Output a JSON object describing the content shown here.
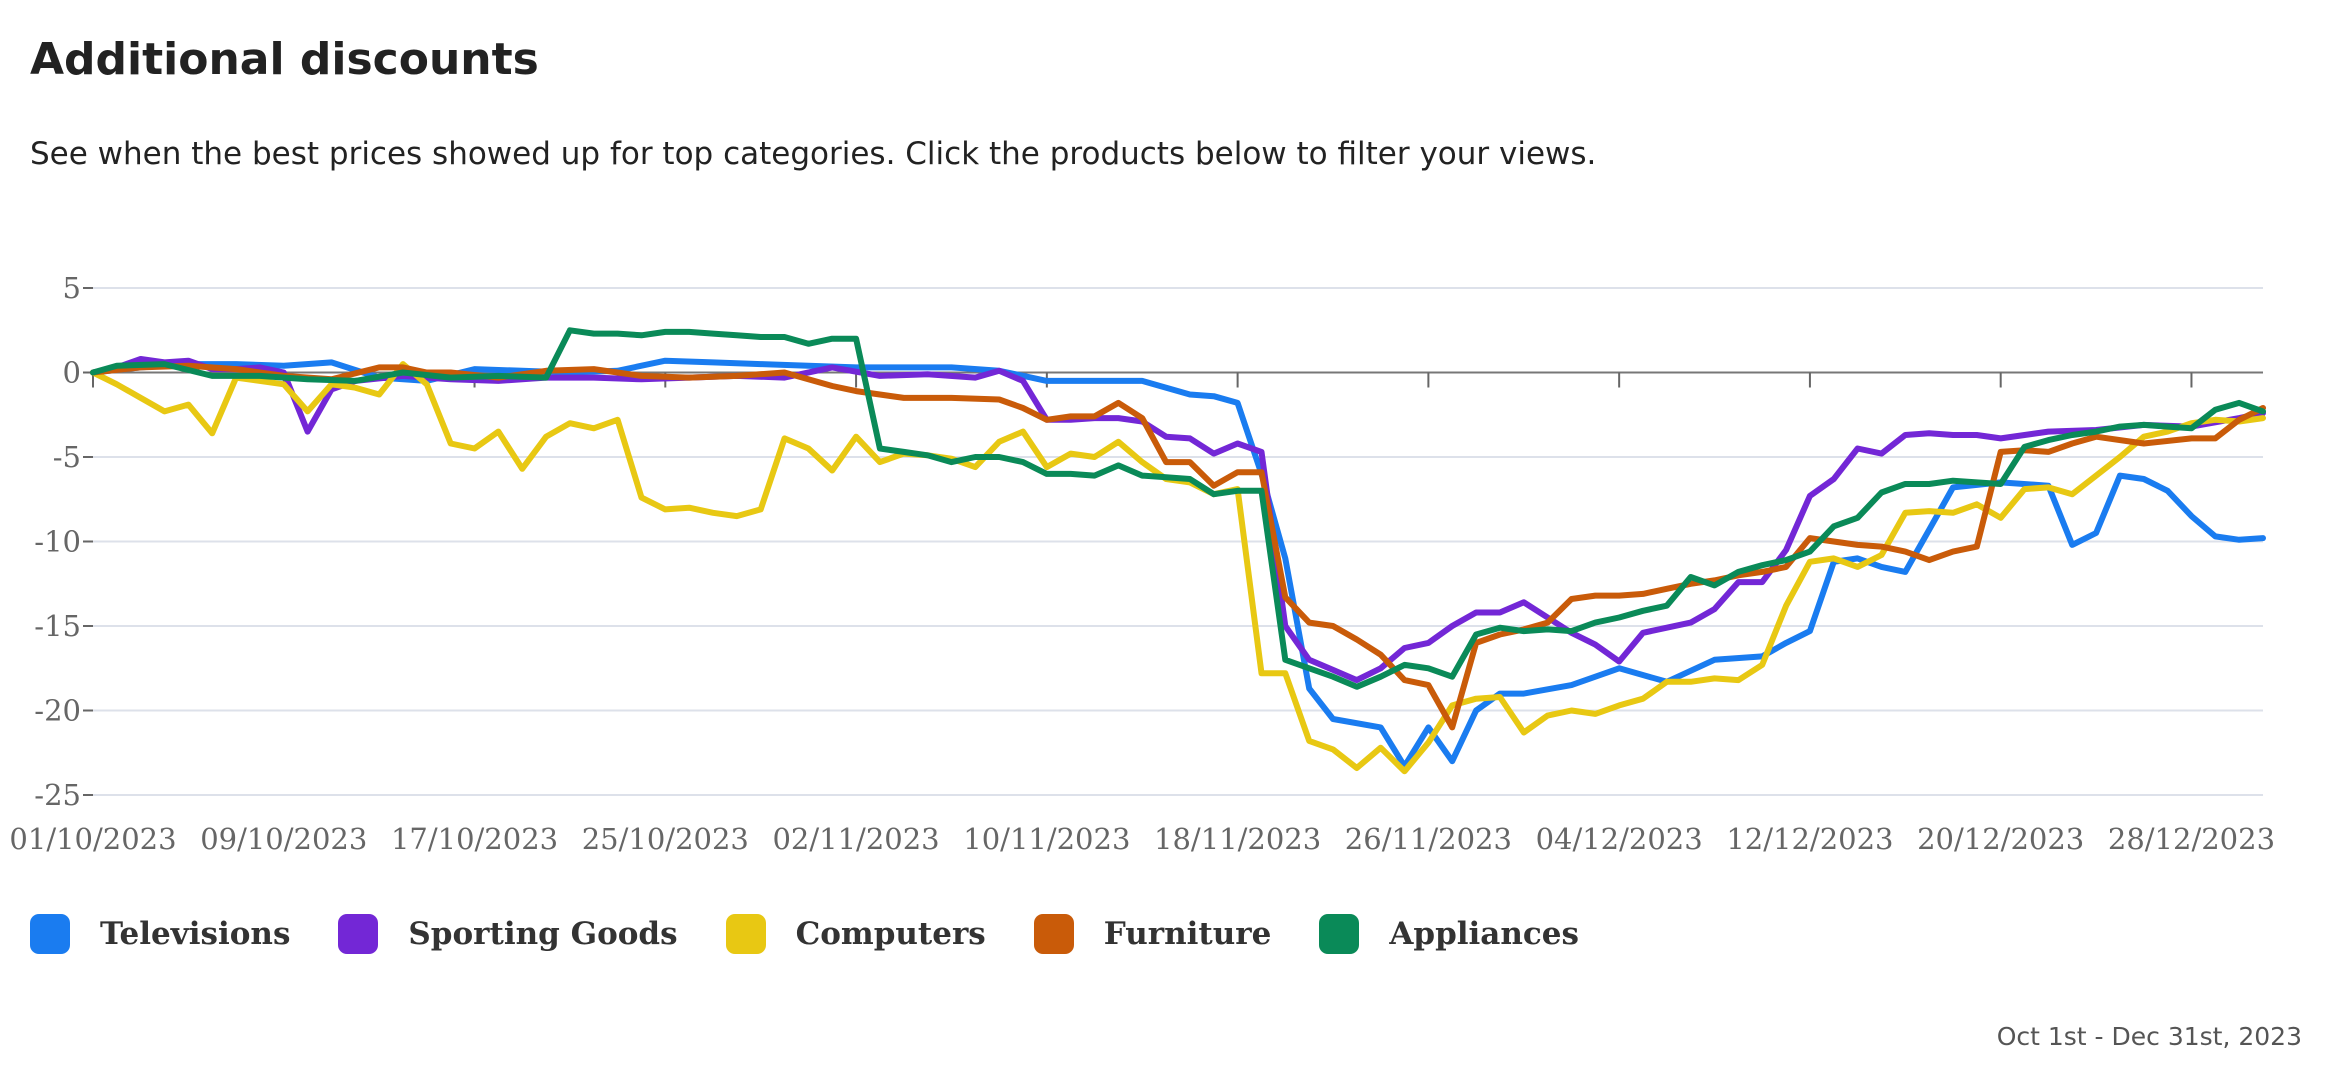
{
  "header": {
    "title": "Additional discounts",
    "subtitle": "See when the best prices showed up for top categories. Click the products below to filter your views."
  },
  "footer": {
    "date_range": "Oct 1st - Dec 31st, 2023"
  },
  "chart_data": {
    "type": "line",
    "title": "",
    "xlabel": "",
    "ylabel": "",
    "x_range": [
      "01/10/2023",
      "31/12/2023"
    ],
    "ylim": [
      -25,
      5
    ],
    "yticks": [
      5,
      0,
      -5,
      -10,
      -15,
      -20,
      -25
    ],
    "ytick_labels": [
      "5",
      "0",
      "-5",
      "-10",
      "-15",
      "-20",
      "-25"
    ],
    "xticks": [
      "01/10/2023",
      "09/10/2023",
      "17/10/2023",
      "25/10/2023",
      "02/11/2023",
      "10/11/2023",
      "18/11/2023",
      "26/11/2023",
      "04/12/2023",
      "12/12/2023",
      "20/12/2023",
      "28/12/2023"
    ],
    "grid": true,
    "legend_position": "bottom-left",
    "series": [
      {
        "name": "Televisions",
        "color": "#1a7cf0",
        "x": [
          "01/10/2023",
          "03/10/2023",
          "05/10/2023",
          "07/10/2023",
          "09/10/2023",
          "11/10/2023",
          "13/10/2023",
          "15/10/2023",
          "17/10/2023",
          "19/10/2023",
          "21/10/2023",
          "23/10/2023",
          "25/10/2023",
          "27/10/2023",
          "29/10/2023",
          "31/10/2023",
          "02/11/2023",
          "04/11/2023",
          "06/11/2023",
          "08/11/2023",
          "10/11/2023",
          "12/11/2023",
          "14/11/2023",
          "16/11/2023",
          "17/11/2023",
          "18/11/2023",
          "19/11/2023",
          "20/11/2023",
          "21/11/2023",
          "22/11/2023",
          "24/11/2023",
          "25/11/2023",
          "26/11/2023",
          "27/11/2023",
          "28/11/2023",
          "29/11/2023",
          "30/11/2023",
          "02/12/2023",
          "04/12/2023",
          "06/12/2023",
          "08/12/2023",
          "10/12/2023",
          "11/12/2023",
          "12/12/2023",
          "13/12/2023",
          "14/12/2023",
          "15/12/2023",
          "16/12/2023",
          "17/12/2023",
          "18/12/2023",
          "20/12/2023",
          "22/12/2023",
          "23/12/2023",
          "24/12/2023",
          "25/12/2023",
          "26/12/2023",
          "27/12/2023",
          "28/12/2023",
          "29/12/2023",
          "30/12/2023",
          "31/12/2023"
        ],
        "y": [
          0,
          0.3,
          0.5,
          0.5,
          0.4,
          0.6,
          -0.3,
          -0.5,
          0.2,
          0.1,
          0,
          0.1,
          0.7,
          0.6,
          0.5,
          0.4,
          0.3,
          0.3,
          0.3,
          0.1,
          -0.5,
          -0.5,
          -0.5,
          -1.3,
          -1.4,
          -1.8,
          -6,
          -11,
          -18.7,
          -20.5,
          -21,
          -23.3,
          -21,
          -23,
          -20,
          -19,
          -19,
          -18.5,
          -17.5,
          -18.3,
          -17,
          -16.8,
          -16,
          -15.3,
          -11.2,
          -11,
          -11.5,
          -11.8,
          -9.3,
          -6.8,
          -6.5,
          -6.7,
          -10.2,
          -9.5,
          -6.1,
          -6.3,
          -7,
          -8.5,
          -9.7,
          -9.9,
          -9.8
        ]
      },
      {
        "name": "Sporting Goods",
        "color": "#7327d6",
        "x": [
          "01/10/2023",
          "02/10/2023",
          "03/10/2023",
          "04/10/2023",
          "05/10/2023",
          "06/10/2023",
          "07/10/2023",
          "08/10/2023",
          "09/10/2023",
          "10/10/2023",
          "11/10/2023",
          "12/10/2023",
          "14/10/2023",
          "16/10/2023",
          "18/10/2023",
          "20/10/2023",
          "22/10/2023",
          "24/10/2023",
          "26/10/2023",
          "28/10/2023",
          "30/10/2023",
          "01/11/2023",
          "03/11/2023",
          "05/11/2023",
          "07/11/2023",
          "08/11/2023",
          "09/11/2023",
          "10/11/2023",
          "11/11/2023",
          "12/11/2023",
          "13/11/2023",
          "14/11/2023",
          "15/11/2023",
          "16/11/2023",
          "17/11/2023",
          "18/11/2023",
          "19/11/2023",
          "20/11/2023",
          "21/11/2023",
          "22/11/2023",
          "23/11/2023",
          "24/11/2023",
          "25/11/2023",
          "26/11/2023",
          "27/11/2023",
          "28/11/2023",
          "29/11/2023",
          "30/11/2023",
          "01/12/2023",
          "02/12/2023",
          "03/12/2023",
          "04/12/2023",
          "05/12/2023",
          "06/12/2023",
          "07/12/2023",
          "08/12/2023",
          "09/12/2023",
          "10/12/2023",
          "11/12/2023",
          "12/12/2023",
          "13/12/2023",
          "14/12/2023",
          "15/12/2023",
          "16/12/2023",
          "17/12/2023",
          "18/12/2023",
          "19/12/2023",
          "20/12/2023",
          "22/12/2023",
          "24/12/2023",
          "26/12/2023",
          "28/12/2023",
          "30/12/2023",
          "31/12/2023"
        ],
        "y": [
          0,
          0.3,
          0.8,
          0.6,
          0.7,
          0.2,
          0.2,
          0.3,
          0,
          -3.5,
          -1,
          -0.5,
          -0.2,
          -0.4,
          -0.5,
          -0.3,
          -0.3,
          -0.4,
          -0.3,
          -0.2,
          -0.3,
          0.3,
          -0.2,
          -0.1,
          -0.3,
          0.1,
          -0.5,
          -2.8,
          -2.8,
          -2.7,
          -2.7,
          -2.9,
          -3.8,
          -3.9,
          -4.8,
          -4.2,
          -4.7,
          -15,
          -17,
          -17.6,
          -18.2,
          -17.5,
          -16.3,
          -16,
          -15,
          -14.2,
          -14.2,
          -13.6,
          -14.5,
          -15.4,
          -16.1,
          -17.1,
          -15.4,
          -15.1,
          -14.8,
          -14,
          -12.4,
          -12.4,
          -10.5,
          -7.3,
          -6.3,
          -4.5,
          -4.8,
          -3.7,
          -3.6,
          -3.7,
          -3.7,
          -3.9,
          -3.5,
          -3.4,
          -3.1,
          -3.2,
          -2.7,
          -2.4
        ]
      },
      {
        "name": "Computers",
        "color": "#e8c813",
        "x": [
          "01/10/2023",
          "02/10/2023",
          "03/10/2023",
          "04/10/2023",
          "05/10/2023",
          "06/10/2023",
          "07/10/2023",
          "08/10/2023",
          "09/10/2023",
          "10/10/2023",
          "11/10/2023",
          "12/10/2023",
          "13/10/2023",
          "14/10/2023",
          "15/10/2023",
          "16/10/2023",
          "17/10/2023",
          "18/10/2023",
          "19/10/2023",
          "20/10/2023",
          "21/10/2023",
          "22/10/2023",
          "23/10/2023",
          "24/10/2023",
          "25/10/2023",
          "26/10/2023",
          "27/10/2023",
          "28/10/2023",
          "29/10/2023",
          "30/10/2023",
          "31/10/2023",
          "01/11/2023",
          "02/11/2023",
          "03/11/2023",
          "04/11/2023",
          "05/11/2023",
          "06/11/2023",
          "07/11/2023",
          "08/11/2023",
          "09/11/2023",
          "10/11/2023",
          "11/11/2023",
          "12/11/2023",
          "13/11/2023",
          "14/11/2023",
          "15/11/2023",
          "16/11/2023",
          "17/11/2023",
          "18/11/2023",
          "19/11/2023",
          "20/11/2023",
          "21/11/2023",
          "22/11/2023",
          "23/11/2023",
          "24/11/2023",
          "25/11/2023",
          "26/11/2023",
          "27/11/2023",
          "28/11/2023",
          "29/11/2023",
          "30/11/2023",
          "01/12/2023",
          "02/12/2023",
          "03/12/2023",
          "04/12/2023",
          "05/12/2023",
          "06/12/2023",
          "07/12/2023",
          "08/12/2023",
          "09/12/2023",
          "10/12/2023",
          "11/12/2023",
          "12/12/2023",
          "13/12/2023",
          "14/12/2023",
          "15/12/2023",
          "16/12/2023",
          "17/12/2023",
          "18/12/2023",
          "19/12/2023",
          "20/12/2023",
          "21/12/2023",
          "22/12/2023",
          "23/12/2023",
          "24/12/2023",
          "25/12/2023",
          "26/12/2023",
          "27/12/2023",
          "28/12/2023",
          "29/12/2023",
          "30/12/2023",
          "31/12/2023"
        ],
        "y": [
          0,
          -0.7,
          -1.5,
          -2.3,
          -1.9,
          -3.6,
          -0.3,
          -0.5,
          -0.7,
          -2.3,
          -0.7,
          -0.9,
          -1.3,
          0.5,
          -0.7,
          -4.2,
          -4.5,
          -3.5,
          -5.7,
          -3.8,
          -3,
          -3.3,
          -2.8,
          -7.4,
          -8.1,
          -8,
          -8.3,
          -8.5,
          -8.1,
          -3.9,
          -4.5,
          -5.8,
          -3.8,
          -5.3,
          -4.8,
          -4.9,
          -5.1,
          -5.6,
          -4.1,
          -3.5,
          -5.6,
          -4.8,
          -5,
          -4.1,
          -5.3,
          -6.3,
          -6.5,
          -7.2,
          -6.9,
          -17.8,
          -17.8,
          -21.8,
          -22.3,
          -23.4,
          -22.2,
          -23.6,
          -21.9,
          -19.7,
          -19.3,
          -19.2,
          -21.3,
          -20.3,
          -20,
          -20.2,
          -19.7,
          -19.3,
          -18.3,
          -18.3,
          -18.1,
          -18.2,
          -17.3,
          -13.8,
          -11.2,
          -11,
          -11.5,
          -10.8,
          -8.3,
          -8.2,
          -8.3,
          -7.8,
          -8.6,
          -6.9,
          -6.8,
          -7.2,
          -6.1,
          -5,
          -3.8,
          -3.5,
          -3,
          -2.8,
          -2.9,
          -2.7
        ]
      },
      {
        "name": "Furniture",
        "color": "#c95b09",
        "x": [
          "01/10/2023",
          "03/10/2023",
          "05/10/2023",
          "07/10/2023",
          "09/10/2023",
          "11/10/2023",
          "13/10/2023",
          "14/10/2023",
          "15/10/2023",
          "16/10/2023",
          "18/10/2023",
          "20/10/2023",
          "22/10/2023",
          "24/10/2023",
          "26/10/2023",
          "28/10/2023",
          "30/10/2023",
          "01/11/2023",
          "02/11/2023",
          "04/11/2023",
          "06/11/2023",
          "08/11/2023",
          "09/11/2023",
          "10/11/2023",
          "11/11/2023",
          "12/11/2023",
          "13/11/2023",
          "14/11/2023",
          "15/11/2023",
          "16/11/2023",
          "17/11/2023",
          "18/11/2023",
          "19/11/2023",
          "20/11/2023",
          "21/11/2023",
          "22/11/2023",
          "23/11/2023",
          "24/11/2023",
          "25/11/2023",
          "26/11/2023",
          "27/11/2023",
          "28/11/2023",
          "29/11/2023",
          "30/11/2023",
          "01/12/2023",
          "02/12/2023",
          "03/12/2023",
          "04/12/2023",
          "05/12/2023",
          "06/12/2023",
          "07/12/2023",
          "08/12/2023",
          "09/12/2023",
          "10/12/2023",
          "11/12/2023",
          "12/12/2023",
          "13/12/2023",
          "14/12/2023",
          "15/12/2023",
          "16/12/2023",
          "17/12/2023",
          "18/12/2023",
          "19/12/2023",
          "20/12/2023",
          "21/12/2023",
          "22/12/2023",
          "23/12/2023",
          "24/12/2023",
          "26/12/2023",
          "28/12/2023",
          "29/12/2023",
          "30/12/2023",
          "31/12/2023"
        ],
        "y": [
          0,
          0.3,
          0.4,
          0.2,
          -0.2,
          -0.4,
          0.3,
          0.3,
          0,
          0,
          -0.3,
          0.1,
          0.2,
          -0.2,
          -0.3,
          -0.2,
          0,
          -0.8,
          -1.1,
          -1.5,
          -1.5,
          -1.6,
          -2.1,
          -2.8,
          -2.6,
          -2.6,
          -1.8,
          -2.7,
          -5.3,
          -5.3,
          -6.7,
          -5.9,
          -5.9,
          -13.3,
          -14.8,
          -15,
          -15.8,
          -16.7,
          -18.2,
          -18.5,
          -21,
          -16,
          -15.5,
          -15.2,
          -14.8,
          -13.4,
          -13.2,
          -13.2,
          -13.1,
          -12.8,
          -12.5,
          -12.3,
          -12,
          -11.8,
          -11.5,
          -9.8,
          -10,
          -10.2,
          -10.3,
          -10.6,
          -11.1,
          -10.6,
          -10.3,
          -4.7,
          -4.6,
          -4.7,
          -4.2,
          -3.8,
          -4.2,
          -3.9,
          -3.9,
          -2.8,
          -2.1
        ]
      },
      {
        "name": "Appliances",
        "color": "#0a8a58",
        "x": [
          "01/10/2023",
          "02/10/2023",
          "04/10/2023",
          "06/10/2023",
          "08/10/2023",
          "10/10/2023",
          "12/10/2023",
          "14/10/2023",
          "16/10/2023",
          "18/10/2023",
          "20/10/2023",
          "21/10/2023",
          "22/10/2023",
          "23/10/2023",
          "24/10/2023",
          "25/10/2023",
          "26/10/2023",
          "27/10/2023",
          "28/10/2023",
          "29/10/2023",
          "30/10/2023",
          "31/10/2023",
          "01/11/2023",
          "02/11/2023",
          "03/11/2023",
          "04/11/2023",
          "05/11/2023",
          "06/11/2023",
          "07/11/2023",
          "08/11/2023",
          "09/11/2023",
          "10/11/2023",
          "11/11/2023",
          "12/11/2023",
          "13/11/2023",
          "14/11/2023",
          "15/11/2023",
          "16/11/2023",
          "17/11/2023",
          "18/11/2023",
          "19/11/2023",
          "20/11/2023",
          "21/11/2023",
          "22/11/2023",
          "23/11/2023",
          "24/11/2023",
          "25/11/2023",
          "26/11/2023",
          "27/11/2023",
          "28/11/2023",
          "29/11/2023",
          "30/11/2023",
          "01/12/2023",
          "02/12/2023",
          "03/12/2023",
          "04/12/2023",
          "05/12/2023",
          "06/12/2023",
          "07/12/2023",
          "08/12/2023",
          "09/12/2023",
          "10/12/2023",
          "11/12/2023",
          "12/12/2023",
          "13/12/2023",
          "14/12/2023",
          "15/12/2023",
          "16/12/2023",
          "17/12/2023",
          "18/12/2023",
          "19/12/2023",
          "20/12/2023",
          "21/12/2023",
          "22/12/2023",
          "23/12/2023",
          "24/12/2023",
          "25/12/2023",
          "26/12/2023",
          "27/12/2023",
          "28/12/2023",
          "29/12/2023",
          "30/12/2023",
          "31/12/2023"
        ],
        "y": [
          0,
          0.4,
          0.5,
          -0.2,
          -0.2,
          -0.4,
          -0.5,
          0,
          -0.3,
          -0.2,
          -0.3,
          2.5,
          2.3,
          2.3,
          2.2,
          2.4,
          2.4,
          2.3,
          2.2,
          2.1,
          2.1,
          1.7,
          2,
          2,
          -4.5,
          -4.7,
          -4.9,
          -5.3,
          -5,
          -5,
          -5.3,
          -6,
          -6,
          -6.1,
          -5.5,
          -6.1,
          -6.2,
          -6.3,
          -7.2,
          -7,
          -7,
          -17,
          -17.5,
          -18,
          -18.6,
          -18,
          -17.3,
          -17.5,
          -18,
          -15.5,
          -15.1,
          -15.3,
          -15.2,
          -15.3,
          -14.8,
          -14.5,
          -14.1,
          -13.8,
          -12.1,
          -12.6,
          -11.8,
          -11.4,
          -11.1,
          -10.6,
          -9.1,
          -8.6,
          -7.1,
          -6.6,
          -6.6,
          -6.4,
          -6.5,
          -6.6,
          -4.4,
          -4,
          -3.7,
          -3.5,
          -3.2,
          -3.1,
          -3.2,
          -3.3,
          -2.2,
          -1.8,
          -2.3
        ]
      }
    ]
  }
}
